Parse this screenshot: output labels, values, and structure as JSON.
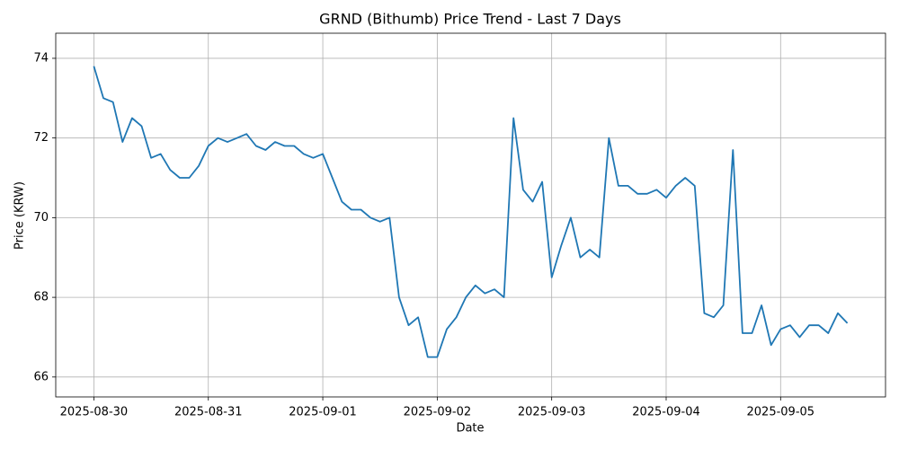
{
  "chart_data": {
    "type": "line",
    "title": "GRND (Bithumb) Price Trend - Last 7 Days",
    "x_label": "Date",
    "y_label": "Price (KRW)",
    "color": "#1f77b4",
    "grid": true,
    "xlim": [
      "2025-08-29T16:00",
      "2025-09-05T22:00"
    ],
    "xticks": [
      "2025-08-30",
      "2025-08-31",
      "2025-09-01",
      "2025-09-02",
      "2025-09-03",
      "2025-09-04",
      "2025-09-05"
    ],
    "ylim": [
      65.5,
      74.63
    ],
    "yticks": [
      66,
      68,
      70,
      72,
      74
    ],
    "x": [
      "2025-08-30T00:00",
      "2025-08-30T02:00",
      "2025-08-30T04:00",
      "2025-08-30T06:00",
      "2025-08-30T08:00",
      "2025-08-30T10:00",
      "2025-08-30T12:00",
      "2025-08-30T14:00",
      "2025-08-30T16:00",
      "2025-08-30T18:00",
      "2025-08-30T20:00",
      "2025-08-30T22:00",
      "2025-08-31T00:00",
      "2025-08-31T02:00",
      "2025-08-31T04:00",
      "2025-08-31T06:00",
      "2025-08-31T08:00",
      "2025-08-31T10:00",
      "2025-08-31T12:00",
      "2025-08-31T14:00",
      "2025-08-31T16:00",
      "2025-08-31T18:00",
      "2025-08-31T20:00",
      "2025-08-31T22:00",
      "2025-09-01T00:00",
      "2025-09-01T02:00",
      "2025-09-01T04:00",
      "2025-09-01T06:00",
      "2025-09-01T08:00",
      "2025-09-01T10:00",
      "2025-09-01T12:00",
      "2025-09-01T14:00",
      "2025-09-01T16:00",
      "2025-09-01T18:00",
      "2025-09-01T20:00",
      "2025-09-01T22:00",
      "2025-09-02T00:00",
      "2025-09-02T02:00",
      "2025-09-02T04:00",
      "2025-09-02T06:00",
      "2025-09-02T08:00",
      "2025-09-02T10:00",
      "2025-09-02T12:00",
      "2025-09-02T14:00",
      "2025-09-02T16:00",
      "2025-09-02T18:00",
      "2025-09-02T20:00",
      "2025-09-02T22:00",
      "2025-09-03T00:00",
      "2025-09-03T02:00",
      "2025-09-03T04:00",
      "2025-09-03T06:00",
      "2025-09-03T08:00",
      "2025-09-03T10:00",
      "2025-09-03T12:00",
      "2025-09-03T14:00",
      "2025-09-03T16:00",
      "2025-09-03T18:00",
      "2025-09-03T20:00",
      "2025-09-03T22:00",
      "2025-09-04T00:00",
      "2025-09-04T02:00",
      "2025-09-04T04:00",
      "2025-09-04T06:00",
      "2025-09-04T08:00",
      "2025-09-04T10:00",
      "2025-09-04T12:00",
      "2025-09-04T14:00",
      "2025-09-04T16:00",
      "2025-09-04T18:00",
      "2025-09-04T20:00",
      "2025-09-04T22:00",
      "2025-09-05T00:00",
      "2025-09-05T02:00",
      "2025-09-05T04:00",
      "2025-09-05T06:00",
      "2025-09-05T08:00",
      "2025-09-05T10:00",
      "2025-09-05T12:00",
      "2025-09-05T14:00"
    ],
    "values": [
      73.8,
      73.0,
      72.9,
      71.9,
      72.5,
      72.3,
      71.5,
      71.6,
      71.2,
      71.0,
      71.0,
      71.3,
      71.8,
      72.0,
      71.9,
      72.0,
      72.1,
      71.8,
      71.7,
      71.9,
      71.8,
      71.8,
      71.6,
      71.5,
      71.6,
      71.0,
      70.4,
      70.2,
      70.2,
      70.0,
      69.9,
      70.0,
      68.0,
      67.3,
      67.5,
      66.5,
      66.5,
      67.2,
      67.5,
      68.0,
      68.3,
      68.1,
      68.2,
      68.0,
      72.5,
      70.7,
      70.4,
      70.9,
      68.5,
      69.3,
      70.0,
      69.0,
      69.2,
      69.0,
      72.0,
      70.8,
      70.8,
      70.6,
      70.6,
      70.7,
      70.5,
      70.8,
      71.0,
      70.8,
      67.6,
      67.5,
      67.8,
      71.7,
      67.1,
      67.1,
      67.8,
      66.8,
      67.2,
      67.3,
      67.0,
      67.3,
      67.3,
      67.1,
      67.6,
      67.35
    ]
  }
}
